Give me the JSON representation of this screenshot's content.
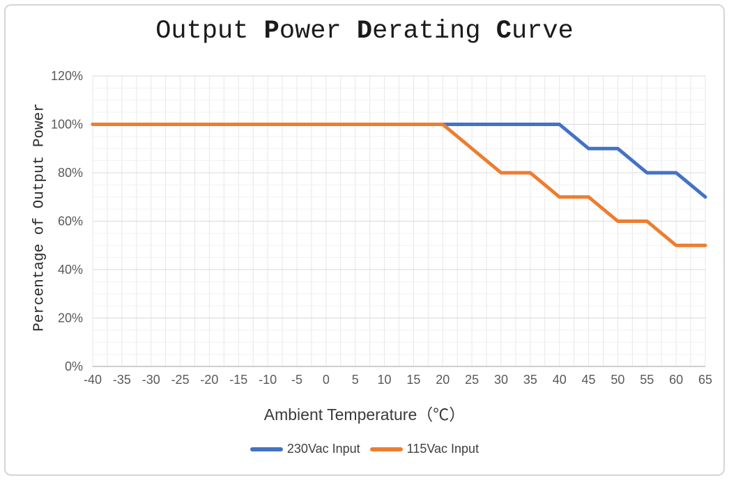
{
  "page": {
    "background": "#ffffff",
    "frame_border_color": "#d6d6d6"
  },
  "chart_data": {
    "type": "line",
    "title": "Output Power Derating Curve",
    "title_segments": [
      {
        "text": "Output ",
        "bold": false
      },
      {
        "text": "P",
        "bold": true
      },
      {
        "text": "ower ",
        "bold": false
      },
      {
        "text": "D",
        "bold": true
      },
      {
        "text": "erating ",
        "bold": false
      },
      {
        "text": "C",
        "bold": true
      },
      {
        "text": "urve",
        "bold": false
      }
    ],
    "xlabel": "Ambient Temperature（℃）",
    "ylabel": "Percentage of Output Power",
    "xlim": [
      -40,
      65
    ],
    "ylim": [
      0,
      120
    ],
    "x_tick_step": 5,
    "x_minor_step": 2.5,
    "y_tick_step": 20,
    "y_minor_step": 5,
    "grid": true,
    "legend_position": "bottom-center",
    "x_ticks": [
      -40,
      -35,
      -30,
      -25,
      -20,
      -15,
      -10,
      -5,
      0,
      5,
      10,
      15,
      20,
      25,
      30,
      35,
      40,
      45,
      50,
      55,
      60,
      65
    ],
    "y_tick_labels": [
      "0%",
      "20%",
      "40%",
      "60%",
      "80%",
      "100%",
      "120%"
    ],
    "categories": [
      -40,
      -35,
      -30,
      -25,
      -20,
      -15,
      -10,
      -5,
      0,
      5,
      10,
      15,
      20,
      25,
      30,
      35,
      40,
      45,
      50,
      55,
      60,
      65
    ],
    "series": [
      {
        "name": "230Vac Input",
        "color": "#4472C4",
        "values": [
          100,
          100,
          100,
          100,
          100,
          100,
          100,
          100,
          100,
          100,
          100,
          100,
          100,
          100,
          100,
          100,
          100,
          90,
          90,
          80,
          80,
          70
        ]
      },
      {
        "name": "115Vac Input",
        "color": "#ED7D31",
        "values": [
          100,
          100,
          100,
          100,
          100,
          100,
          100,
          100,
          100,
          100,
          100,
          100,
          100,
          90,
          80,
          80,
          70,
          70,
          60,
          60,
          50,
          50
        ]
      }
    ],
    "colors": {
      "axis_line": "#bdbdbd",
      "grid_major": "#d9d9d9",
      "grid_minor": "#f1f1f1",
      "grid_vertical": "#e7e7e7",
      "tick_label": "#595959",
      "title": "#1a1a1a",
      "x_axis_title": "#3a3a3a",
      "y_axis_title": "#2b2b2b"
    }
  }
}
